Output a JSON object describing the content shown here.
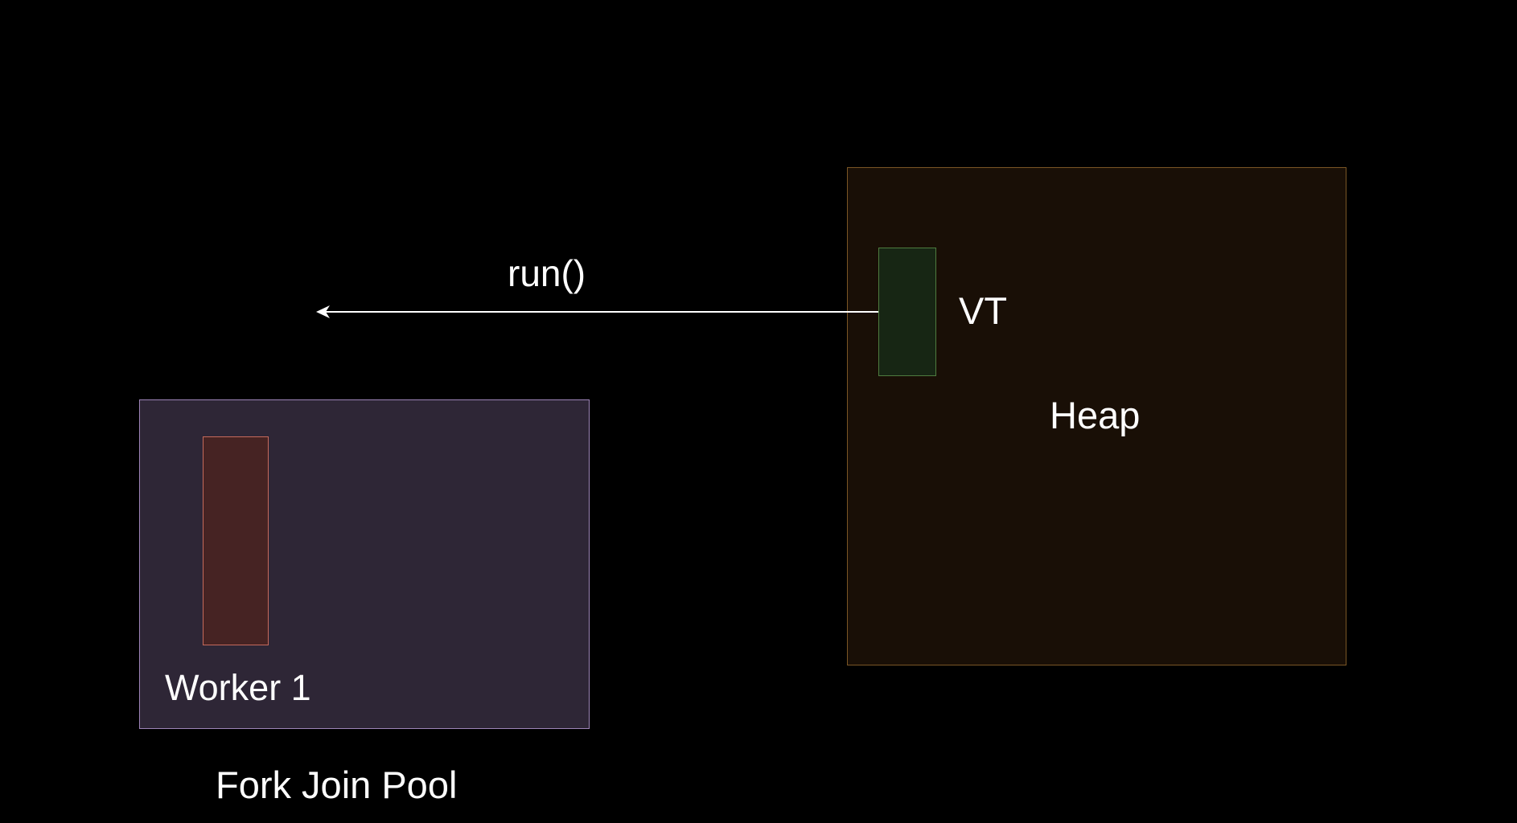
{
  "diagram": {
    "fork_join_pool": {
      "label": "Fork Join Pool",
      "worker": {
        "label": "Worker 1"
      }
    },
    "heap": {
      "label": "Heap",
      "virtual_thread": {
        "label": "VT"
      }
    },
    "arrow": {
      "label": "run()"
    }
  },
  "colors": {
    "background": "#000000",
    "pool_fill": "#2e2636",
    "pool_border": "#9d84b8",
    "worker_fill": "#462323",
    "worker_border": "#c66a5c",
    "heap_fill": "#190f06",
    "heap_border": "#7a5625",
    "vt_fill": "#172614",
    "vt_border": "#4e7c3f",
    "arrow": "#ffffff",
    "text": "#ffffff"
  }
}
